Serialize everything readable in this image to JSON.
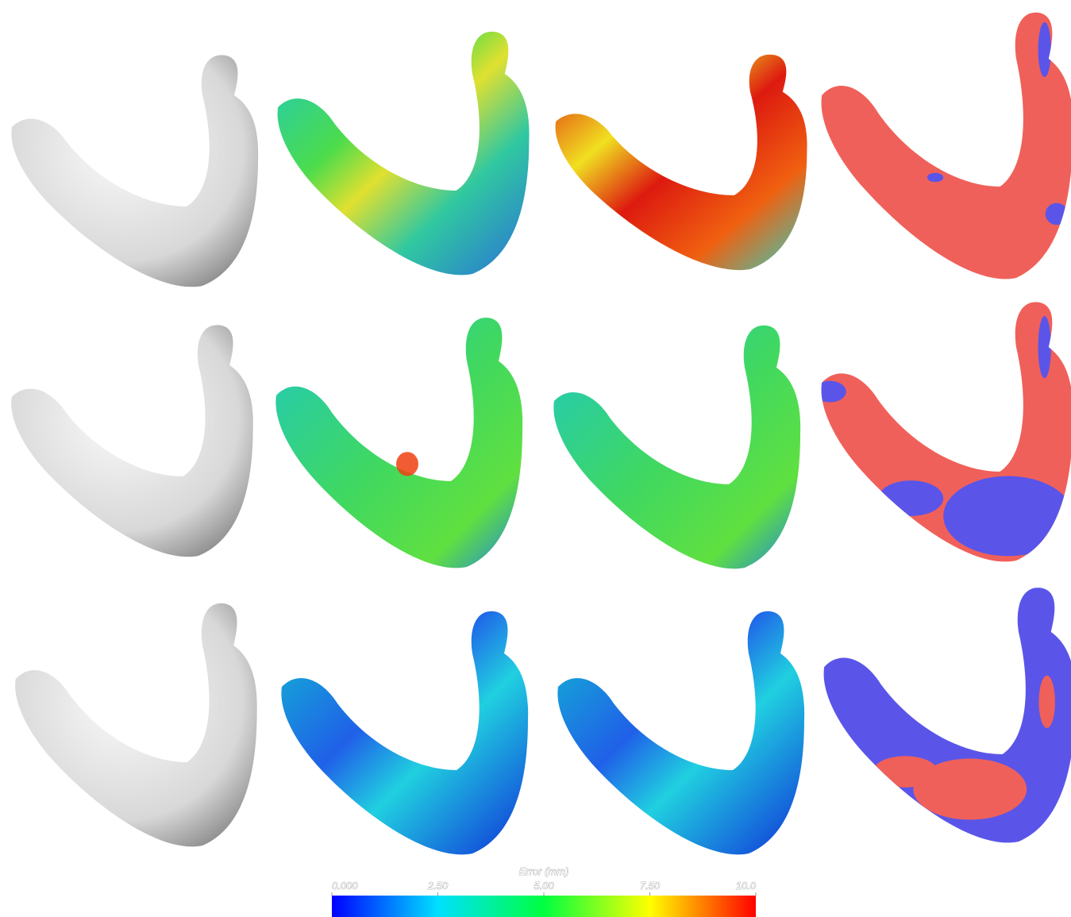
{
  "colorbar": {
    "title": "Error (mm)",
    "range": [
      0,
      10
    ],
    "ticks": [
      {
        "value": 0,
        "label": "0.000"
      },
      {
        "value": 2.5,
        "label": "2.50"
      },
      {
        "value": 5,
        "label": "5.00"
      },
      {
        "value": 7.5,
        "label": "7.50"
      },
      {
        "value": 10,
        "label": "10.0"
      }
    ]
  }
}
